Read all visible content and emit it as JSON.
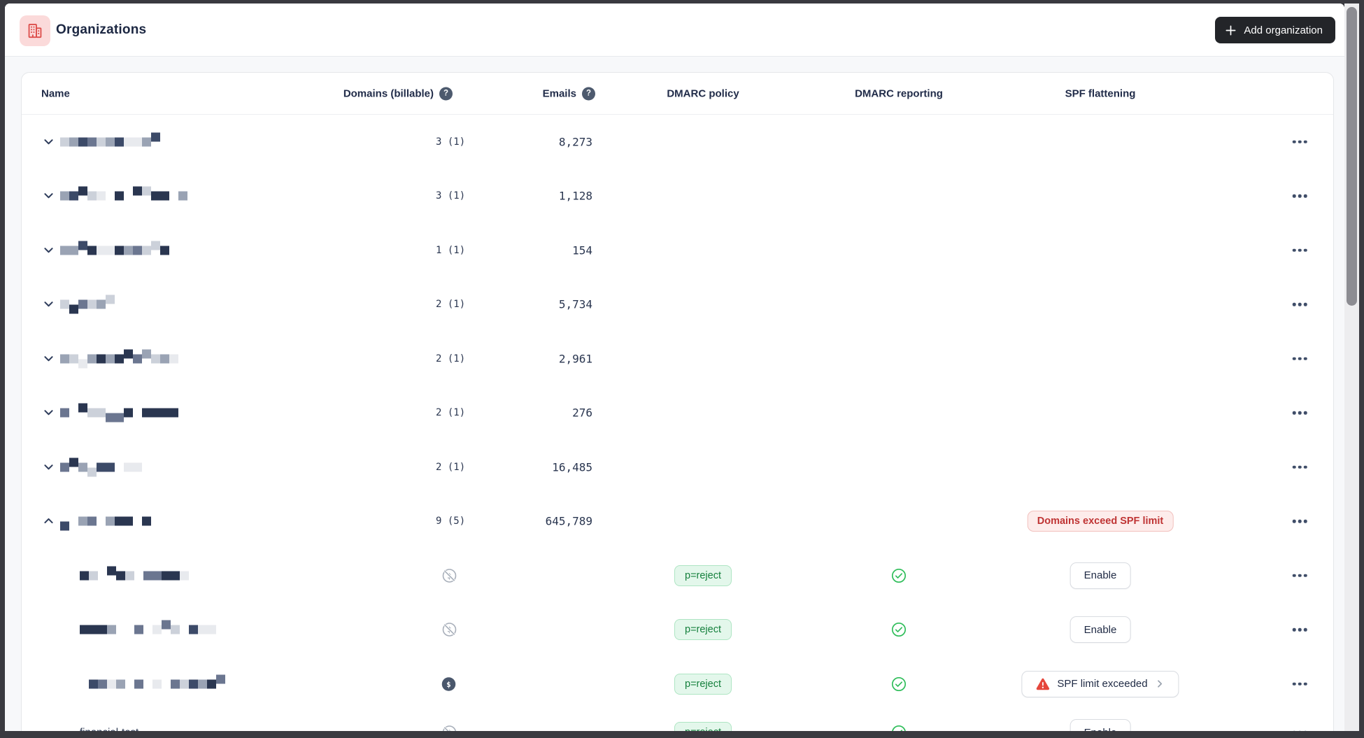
{
  "header": {
    "title": "Organizations",
    "add_button_label": "Add organization"
  },
  "colors": {
    "chrome": "#3a3a40",
    "page_bg": "#f7f8fa",
    "accent_red_icon": "#dd4f4c",
    "accent_red_icon_bg": "#fbdada",
    "add_button_bg": "#232529",
    "badge_green_bg": "#e3f7eb",
    "badge_green_text": "#15803d",
    "badge_red_bg": "#fdeceb",
    "badge_red_text": "#bf3434",
    "check_green": "#2ebd59",
    "warning_red": "#e5473c",
    "text_dark": "#1c2742"
  },
  "table": {
    "columns": {
      "name": "Name",
      "domains": "Domains (billable)",
      "emails": "Emails",
      "dmarc_policy": "DMARC policy",
      "dmarc_reporting": "DMARC reporting",
      "spf_flattening": "SPF flattening"
    },
    "help_icon_glyph": "?",
    "organizations": [
      {
        "name_redacted": {
          "seed": 3,
          "cells": 11
        },
        "domains": "3 (1)",
        "emails": "8,273",
        "expanded": false
      },
      {
        "name_redacted": {
          "seed": 7,
          "cells": 14
        },
        "domains": "3 (1)",
        "emails": "1,128",
        "expanded": false
      },
      {
        "name_redacted": {
          "seed": 11,
          "cells": 12
        },
        "domains": "1 (1)",
        "emails": "154",
        "expanded": false
      },
      {
        "name_redacted": {
          "seed": 5,
          "cells": 7
        },
        "domains": "2 (1)",
        "emails": "5,734",
        "expanded": false
      },
      {
        "name_redacted": {
          "seed": 13,
          "cells": 13
        },
        "domains": "2 (1)",
        "emails": "2,961",
        "expanded": false
      },
      {
        "name_redacted": {
          "seed": 17,
          "cells": 13
        },
        "domains": "2 (1)",
        "emails": "276",
        "expanded": false
      },
      {
        "name_redacted": {
          "seed": 19,
          "cells": 9
        },
        "domains": "2 (1)",
        "emails": "16,485",
        "expanded": false
      },
      {
        "name_redacted": {
          "seed": 23,
          "cells": 10
        },
        "domains": "9 (5)",
        "emails": "645,789",
        "expanded": true,
        "spf_badge": "Domains exceed SPF limit",
        "domains_list": [
          {
            "name_redacted": {
              "seed": 29,
              "cells": 12
            },
            "billable": false,
            "dmarc_policy": "p=reject",
            "dmarc_reporting": "ok",
            "spf": {
              "type": "enable",
              "label": "Enable"
            }
          },
          {
            "name_redacted": {
              "seed": 31,
              "cells": 15
            },
            "billable": false,
            "dmarc_policy": "p=reject",
            "dmarc_reporting": "ok",
            "spf": {
              "type": "enable",
              "label": "Enable"
            }
          },
          {
            "name_redacted": {
              "seed": 37,
              "cells": 16
            },
            "billable": true,
            "dmarc_policy": "p=reject",
            "dmarc_reporting": "ok",
            "spf": {
              "type": "warning",
              "label": "SPF limit exceeded"
            }
          },
          {
            "name": "financial-test",
            "partial": true,
            "billable": false,
            "dmarc_policy": "p=reject",
            "dmarc_reporting": "ok",
            "spf": {
              "type": "enable",
              "label": "Enable"
            }
          }
        ]
      }
    ]
  }
}
